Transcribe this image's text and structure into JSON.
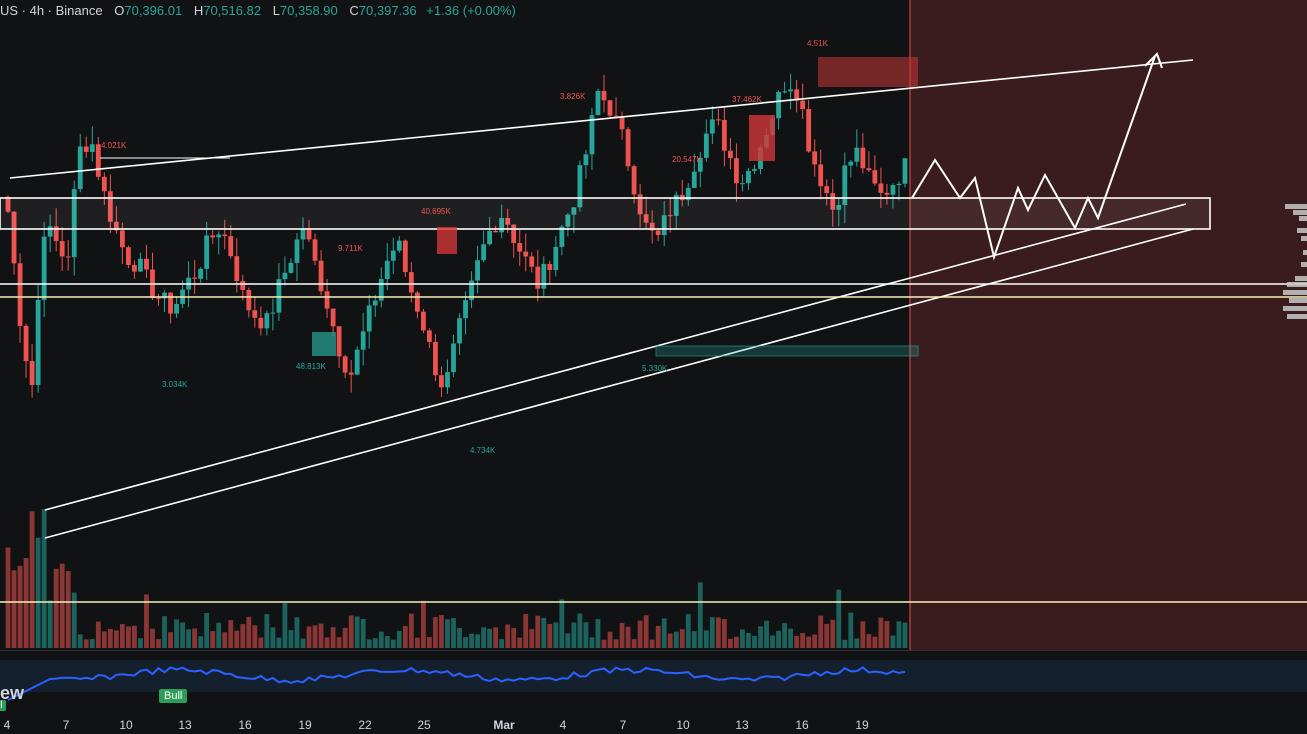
{
  "header": {
    "symbol": "US · 4h · Binance",
    "o_label": "O",
    "o_value": "70,396.01",
    "h_label": "H",
    "h_value": "70,516.82",
    "l_label": "L",
    "l_value": "70,358.90",
    "c_label": "C",
    "c_value": "70,397.36",
    "change": "+1.36 (+0.00%)"
  },
  "branding": {
    "logo_text": "ew",
    "badge_bull": "Bull",
    "badge_bull_small": "ll"
  },
  "colors": {
    "up": "#26a69a",
    "down": "#ef5350",
    "rsi": "#2962ff",
    "zone": "#3a1c1e",
    "lines": "#ffffff",
    "support": "#f5f0b8"
  },
  "chart_data": {
    "type": "candlestick",
    "timeframe": "4h",
    "x_tick_labels": [
      "4",
      "7",
      "10",
      "13",
      "16",
      "19",
      "22",
      "25",
      "Mar",
      "4",
      "7",
      "10",
      "13",
      "16",
      "19"
    ],
    "annotations": [
      "4.021K",
      "3.826K",
      "37.462K",
      "4.51K",
      "20.547K",
      "40.695K",
      "9.711K",
      "3.034K",
      "48.813K",
      "4.734K",
      "5.330K"
    ],
    "price_path_approx": [
      62,
      48,
      38,
      60,
      58,
      55,
      70,
      72,
      65,
      60,
      56,
      55,
      52,
      50,
      49,
      52,
      54,
      58,
      60,
      56,
      50,
      48,
      47,
      52,
      56,
      60,
      55,
      50,
      44,
      40,
      45,
      50,
      55,
      58,
      52,
      48,
      42,
      38,
      45,
      50,
      56,
      60,
      62,
      58,
      55,
      52,
      56,
      60,
      64,
      70,
      78,
      76,
      72,
      66,
      60,
      58,
      62,
      64,
      68,
      72,
      74,
      70,
      66,
      68,
      72,
      76,
      80,
      78,
      70,
      66,
      62,
      68,
      70,
      66,
      64,
      66,
      68
    ],
    "volume_profile": "high at open, moderate thereafter",
    "rsi_band": "shown beneath volume"
  }
}
